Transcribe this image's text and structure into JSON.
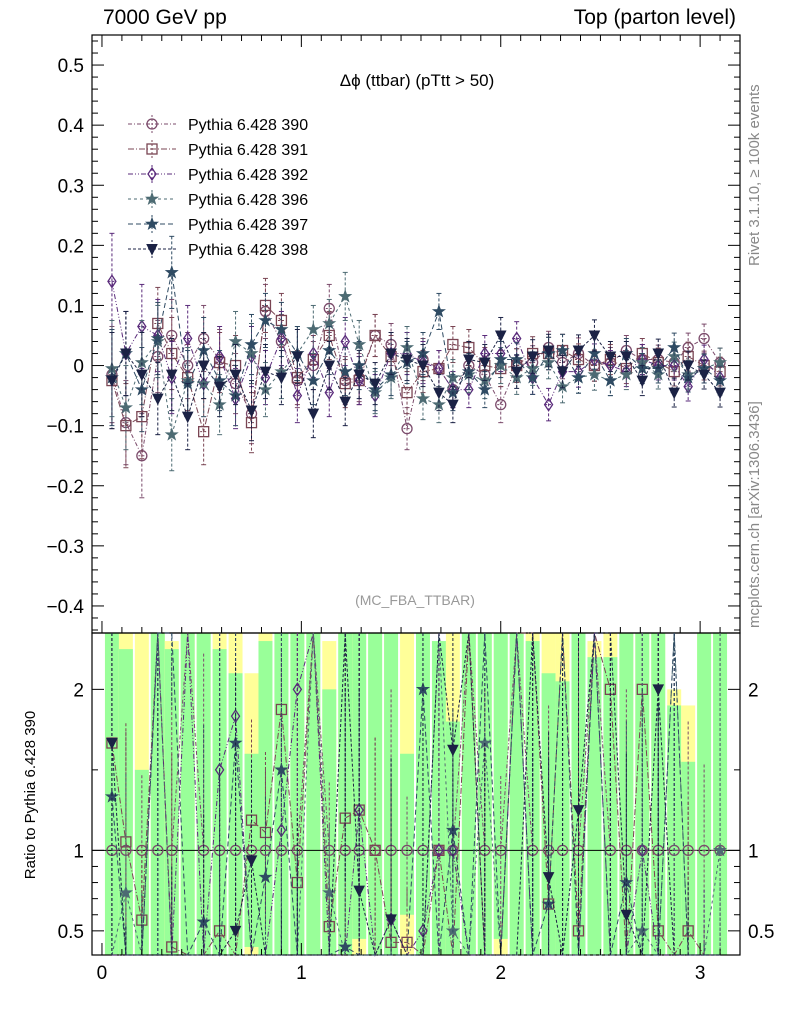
{
  "header": {
    "left": "7000 GeV pp",
    "right": "Top (parton level)"
  },
  "side_labels": {
    "rivet": "Rivet 3.1.10, ≥ 100k events",
    "mcplots": "mcplots.cern.ch [arXiv:1306.3436]"
  },
  "chart_data": [
    {
      "panel": "main",
      "type": "scatter",
      "title": "Δϕ (ttbar) (pTtt > 50)",
      "watermark": "(MC_FBA_TTBAR)",
      "xlim": [
        -0.05,
        3.2
      ],
      "ylim": [
        -0.445,
        0.55
      ],
      "yticks": [
        -0.4,
        -0.3,
        -0.2,
        -0.1,
        0,
        0.1,
        0.2,
        0.3,
        0.4,
        0.5
      ],
      "ytick_labels": [
        "−0.4",
        "−0.3",
        "−0.2",
        "−0.1",
        "0",
        "0.1",
        "0.2",
        "0.3",
        "0.4",
        "0.5"
      ],
      "xticks": [
        0,
        1,
        2,
        3
      ],
      "legend_position": "top-left",
      "x": [
        0.05,
        0.12,
        0.2,
        0.28,
        0.35,
        0.43,
        0.51,
        0.59,
        0.67,
        0.75,
        0.82,
        0.9,
        0.98,
        1.06,
        1.14,
        1.22,
        1.29,
        1.37,
        1.45,
        1.53,
        1.61,
        1.69,
        1.76,
        1.84,
        1.92,
        2.0,
        2.08,
        2.16,
        2.24,
        2.31,
        2.39,
        2.47,
        2.55,
        2.63,
        2.71,
        2.79,
        2.87,
        2.94,
        3.02,
        3.1
      ],
      "series": [
        {
          "name": "Pythia 6.428 390",
          "marker": "circle",
          "color": "#7b4b6b",
          "values": [
            -0.015,
            -0.095,
            -0.15,
            0.015,
            0.05,
            0.0,
            0.045,
            0.01,
            -0.03,
            -0.08,
            0.09,
            0.04,
            -0.025,
            0.0,
            0.095,
            -0.025,
            -0.02,
            0.05,
            0.035,
            -0.105,
            0.01,
            -0.005,
            -0.04,
            0.0,
            -0.015,
            -0.065,
            0.0,
            0.005,
            0.03,
            0.005,
            0.02,
            0.0,
            0.005,
            0.025,
            0.01,
            0.01,
            0.005,
            0.03,
            0.045,
            0.005
          ],
          "errors": [
            0.08,
            0.07,
            0.07,
            0.06,
            0.06,
            0.055,
            0.055,
            0.05,
            0.05,
            0.05,
            0.045,
            0.045,
            0.045,
            0.04,
            0.04,
            0.04,
            0.04,
            0.035,
            0.035,
            0.035,
            0.035,
            0.03,
            0.03,
            0.03,
            0.03,
            0.03,
            0.028,
            0.028,
            0.027,
            0.027,
            0.026,
            0.026,
            0.025,
            0.025,
            0.025,
            0.024,
            0.024,
            0.024,
            0.024,
            0.024
          ]
        },
        {
          "name": "Pythia 6.428 391",
          "marker": "square",
          "color": "#7a4553",
          "values": [
            -0.025,
            -0.1,
            -0.085,
            0.07,
            0.02,
            -0.02,
            -0.11,
            0.005,
            0.0,
            -0.095,
            0.1,
            0.075,
            -0.02,
            0.01,
            0.05,
            -0.03,
            -0.025,
            0.05,
            0.015,
            -0.045,
            -0.01,
            -0.005,
            0.035,
            0.03,
            0.0,
            -0.005,
            0.0,
            0.02,
            0.02,
            0.025,
            0.01,
            0.0,
            0.01,
            -0.005,
            0.02,
            0.005,
            -0.01,
            0.015,
            0.0,
            -0.01
          ],
          "errors": [
            0.08,
            0.07,
            0.07,
            0.06,
            0.06,
            0.055,
            0.055,
            0.05,
            0.05,
            0.05,
            0.045,
            0.045,
            0.045,
            0.04,
            0.04,
            0.04,
            0.04,
            0.035,
            0.035,
            0.035,
            0.035,
            0.03,
            0.03,
            0.03,
            0.03,
            0.03,
            0.028,
            0.028,
            0.027,
            0.027,
            0.026,
            0.026,
            0.025,
            0.025,
            0.025,
            0.024,
            0.024,
            0.024,
            0.024,
            0.024
          ]
        },
        {
          "name": "Pythia 6.428 392",
          "marker": "diamond",
          "color": "#5a2b7b",
          "values": [
            0.14,
            0.02,
            0.065,
            0.05,
            -0.02,
            0.045,
            -0.03,
            0.015,
            -0.055,
            0.015,
            -0.02,
            0.045,
            -0.05,
            0.02,
            -0.045,
            0.04,
            -0.025,
            -0.05,
            0.02,
            0.02,
            0.005,
            -0.005,
            -0.04,
            -0.04,
            0.02,
            0.02,
            0.045,
            -0.02,
            -0.065,
            -0.01,
            -0.01,
            0.01,
            0.0,
            -0.01,
            0.01,
            0.0,
            0.0,
            -0.035,
            0.01,
            -0.02
          ],
          "errors": [
            0.08,
            0.07,
            0.07,
            0.06,
            0.06,
            0.055,
            0.055,
            0.05,
            0.05,
            0.05,
            0.045,
            0.045,
            0.045,
            0.04,
            0.04,
            0.04,
            0.04,
            0.035,
            0.035,
            0.035,
            0.035,
            0.03,
            0.03,
            0.03,
            0.03,
            0.03,
            0.028,
            0.028,
            0.027,
            0.027,
            0.026,
            0.026,
            0.025,
            0.025,
            0.025,
            0.024,
            0.024,
            0.024,
            0.024,
            0.024
          ]
        },
        {
          "name": "Pythia 6.428 396",
          "marker": "star",
          "color": "#4d6b73",
          "values": [
            -0.005,
            -0.07,
            0.005,
            0.04,
            -0.115,
            -0.025,
            -0.03,
            -0.065,
            0.04,
            0.02,
            -0.04,
            -0.01,
            0.02,
            0.06,
            0.07,
            0.115,
            0.035,
            -0.045,
            -0.02,
            0.03,
            -0.055,
            -0.065,
            -0.02,
            -0.015,
            -0.025,
            0.0,
            -0.02,
            -0.005,
            0.005,
            -0.035,
            -0.02,
            -0.015,
            -0.025,
            -0.015,
            0.005,
            -0.015,
            0.015,
            -0.015,
            -0.005,
            0.005
          ],
          "errors": [
            0.08,
            0.07,
            0.07,
            0.06,
            0.06,
            0.055,
            0.055,
            0.05,
            0.05,
            0.05,
            0.045,
            0.045,
            0.045,
            0.04,
            0.04,
            0.04,
            0.04,
            0.035,
            0.035,
            0.035,
            0.035,
            0.03,
            0.03,
            0.03,
            0.03,
            0.03,
            0.028,
            0.028,
            0.027,
            0.027,
            0.026,
            0.026,
            0.025,
            0.025,
            0.025,
            0.024,
            0.024,
            0.024,
            0.024,
            0.024
          ]
        },
        {
          "name": "Pythia 6.428 397",
          "marker": "star",
          "color": "#2f4b63",
          "values": [
            -0.02,
            0.02,
            -0.04,
            0.045,
            0.155,
            -0.03,
            0.025,
            -0.025,
            -0.05,
            0.035,
            0.075,
            0.06,
            0.02,
            -0.025,
            0.025,
            -0.01,
            0.0,
            -0.04,
            -0.015,
            0.005,
            0.02,
            0.09,
            -0.045,
            -0.01,
            -0.04,
            0.01,
            0.01,
            -0.02,
            0.02,
            0.025,
            -0.02,
            0.02,
            -0.025,
            0.02,
            -0.005,
            -0.005,
            0.03,
            -0.02,
            -0.005,
            -0.025
          ],
          "errors": [
            0.08,
            0.07,
            0.07,
            0.06,
            0.06,
            0.055,
            0.055,
            0.05,
            0.05,
            0.05,
            0.045,
            0.045,
            0.045,
            0.04,
            0.04,
            0.04,
            0.04,
            0.035,
            0.035,
            0.035,
            0.035,
            0.03,
            0.03,
            0.03,
            0.03,
            0.03,
            0.028,
            0.028,
            0.027,
            0.027,
            0.026,
            0.026,
            0.025,
            0.025,
            0.025,
            0.024,
            0.024,
            0.024,
            0.024,
            0.024
          ]
        },
        {
          "name": "Pythia 6.428 398",
          "marker": "triangle-down",
          "color": "#1b2245",
          "values": [
            -0.025,
            0.02,
            -0.015,
            -0.055,
            -0.015,
            -0.085,
            0.0,
            -0.035,
            -0.015,
            -0.075,
            -0.01,
            -0.02,
            0.015,
            -0.08,
            0.0,
            -0.06,
            -0.015,
            -0.03,
            0.02,
            0.01,
            0.0,
            -0.045,
            -0.065,
            0.01,
            0.005,
            0.05,
            -0.01,
            0.015,
            0.025,
            -0.01,
            0.025,
            0.05,
            0.015,
            0.015,
            -0.025,
            0.02,
            -0.045,
            0.0,
            -0.015,
            -0.045
          ],
          "errors": [
            0.08,
            0.07,
            0.07,
            0.06,
            0.06,
            0.055,
            0.055,
            0.05,
            0.05,
            0.05,
            0.045,
            0.045,
            0.045,
            0.04,
            0.04,
            0.04,
            0.04,
            0.035,
            0.035,
            0.035,
            0.035,
            0.03,
            0.03,
            0.03,
            0.03,
            0.03,
            0.028,
            0.028,
            0.027,
            0.027,
            0.026,
            0.026,
            0.025,
            0.025,
            0.025,
            0.024,
            0.024,
            0.024,
            0.024,
            0.024
          ]
        }
      ]
    },
    {
      "panel": "ratio",
      "type": "scatter",
      "ylabel": "Ratio to Pythia 6.428 390",
      "xlim": [
        -0.05,
        3.2
      ],
      "ylim": [
        0.35,
        2.35
      ],
      "yticks": [
        0.5,
        1,
        2
      ],
      "ytick_labels": [
        "0.5",
        "1",
        "2"
      ],
      "xticks": [
        0,
        1,
        2,
        3
      ],
      "xtick_labels": [
        "0",
        "1",
        "2",
        "3"
      ],
      "reference_line": 1,
      "band_colors": {
        "outer": "#ffff99",
        "inner": "#99ff99"
      },
      "bands": [
        {
          "outer": [
            0.35,
            2.35
          ],
          "inner": [
            0.35,
            2.35
          ]
        },
        {
          "outer": [
            0.35,
            2.35
          ],
          "inner": [
            0.35,
            2.25
          ]
        },
        {
          "outer": [
            0.35,
            2.35
          ],
          "inner": [
            0.35,
            1.5
          ]
        },
        {
          "outer": [
            0.35,
            2.35
          ],
          "inner": [
            0.35,
            2.35
          ]
        },
        {
          "outer": [
            0.35,
            2.3
          ],
          "inner": [
            0.35,
            2.25
          ]
        },
        {
          "outer": [
            0.35,
            2.35
          ],
          "inner": [
            0.35,
            2.35
          ]
        },
        {
          "outer": [
            0.35,
            2.35
          ],
          "inner": [
            0.35,
            2.35
          ]
        },
        {
          "outer": [
            0.35,
            2.35
          ],
          "inner": [
            0.35,
            2.25
          ]
        },
        {
          "outer": [
            0.35,
            2.35
          ],
          "inner": [
            0.35,
            2.1
          ]
        },
        {
          "outer": [
            0.35,
            2.1
          ],
          "inner": [
            0.4,
            1.6
          ]
        },
        {
          "outer": [
            0.35,
            2.35
          ],
          "inner": [
            0.35,
            2.3
          ]
        },
        {
          "outer": [
            0.35,
            2.35
          ],
          "inner": [
            0.35,
            2.35
          ]
        },
        {
          "outer": [
            0.35,
            2.35
          ],
          "inner": [
            0.35,
            2.35
          ]
        },
        {
          "outer": [
            0.35,
            2.35
          ],
          "inner": [
            0.35,
            2.35
          ]
        },
        {
          "outer": [
            0.35,
            2.3
          ],
          "inner": [
            0.35,
            2.0
          ]
        },
        {
          "outer": [
            0.35,
            2.35
          ],
          "inner": [
            0.35,
            2.35
          ]
        },
        {
          "outer": [
            0.35,
            2.35
          ],
          "inner": [
            0.45,
            2.35
          ]
        },
        {
          "outer": [
            0.35,
            2.35
          ],
          "inner": [
            0.35,
            2.35
          ]
        },
        {
          "outer": [
            0.35,
            2.35
          ],
          "inner": [
            0.35,
            2.35
          ]
        },
        {
          "outer": [
            0.35,
            2.35
          ],
          "inner": [
            0.6,
            1.6
          ]
        },
        {
          "outer": [
            0.35,
            2.35
          ],
          "inner": [
            0.35,
            2.35
          ]
        },
        {
          "outer": [
            0.35,
            2.3
          ],
          "inner": [
            0.35,
            2.3
          ]
        },
        {
          "outer": [
            0.35,
            2.35
          ],
          "inner": [
            0.35,
            1.8
          ]
        },
        {
          "outer": [
            0.35,
            2.35
          ],
          "inner": [
            0.35,
            2.35
          ]
        },
        {
          "outer": [
            0.35,
            2.35
          ],
          "inner": [
            0.35,
            2.35
          ]
        },
        {
          "outer": [
            0.35,
            2.35
          ],
          "inner": [
            0.45,
            2.35
          ]
        },
        {
          "outer": [
            0.35,
            2.35
          ],
          "inner": [
            0.35,
            2.35
          ]
        },
        {
          "outer": [
            0.35,
            2.35
          ],
          "inner": [
            0.35,
            2.3
          ]
        },
        {
          "outer": [
            0.35,
            2.35
          ],
          "inner": [
            0.35,
            2.1
          ]
        },
        {
          "outer": [
            0.35,
            2.35
          ],
          "inner": [
            0.35,
            2.05
          ]
        },
        {
          "outer": [
            0.35,
            2.35
          ],
          "inner": [
            0.35,
            2.35
          ]
        },
        {
          "outer": [
            0.35,
            2.3
          ],
          "inner": [
            0.35,
            2.2
          ]
        },
        {
          "outer": [
            0.35,
            2.35
          ],
          "inner": [
            0.35,
            2.2
          ]
        },
        {
          "outer": [
            0.35,
            2.35
          ],
          "inner": [
            0.35,
            2.35
          ]
        },
        {
          "outer": [
            0.35,
            2.35
          ],
          "inner": [
            0.35,
            2.35
          ]
        },
        {
          "outer": [
            0.35,
            2.35
          ],
          "inner": [
            0.35,
            2.35
          ]
        },
        {
          "outer": [
            0.35,
            2.0
          ],
          "inner": [
            0.35,
            1.9
          ]
        },
        {
          "outer": [
            0.35,
            1.9
          ],
          "inner": [
            0.35,
            1.55
          ]
        },
        {
          "outer": [
            0.35,
            2.35
          ],
          "inner": [
            0.35,
            2.35
          ]
        },
        {
          "outer": [
            0.35,
            2.35
          ],
          "inner": [
            0.35,
            2.35
          ]
        }
      ]
    }
  ]
}
